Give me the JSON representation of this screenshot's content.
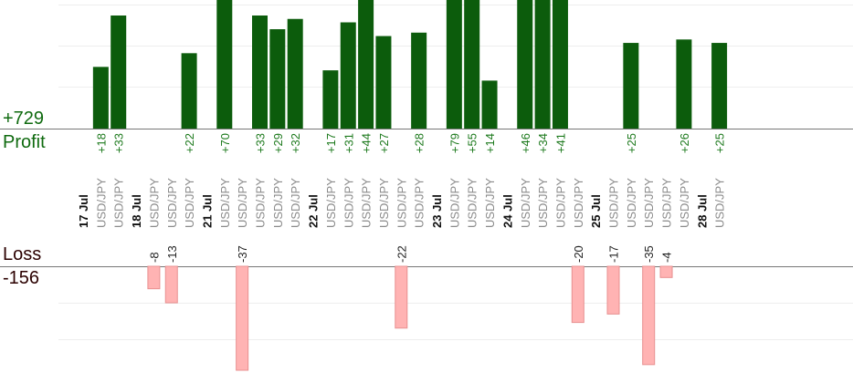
{
  "summary": {
    "profit_total": "+729",
    "profit_label": "Profit",
    "loss_label": "Loss",
    "loss_total": "-156"
  },
  "chart_data": {
    "type": "bar",
    "colors": {
      "profit": "#0c5c0c",
      "loss": "#ffb3b3",
      "label_profit": "#1e7a1e",
      "label_loss": "#222222",
      "pair": "#8a8a8a",
      "date": "#111111"
    },
    "profit_scale_max": 33,
    "loss_scale_max": 37,
    "columns": [
      {
        "date": "17 Jul"
      },
      {
        "pair": "USD/JPY",
        "value": 18
      },
      {
        "pair": "USD/JPY",
        "value": 33
      },
      {
        "date": "18 Jul"
      },
      {
        "pair": "USD/JPY",
        "value": -8
      },
      {
        "pair": "USD/JPY",
        "value": -13
      },
      {
        "pair": "USD/JPY",
        "value": 22
      },
      {
        "date": "21 Jul"
      },
      {
        "pair": "USD/JPY",
        "value": 70
      },
      {
        "pair": "USD/JPY",
        "value": -37
      },
      {
        "pair": "USD/JPY",
        "value": 33
      },
      {
        "pair": "USD/JPY",
        "value": 29
      },
      {
        "pair": "USD/JPY",
        "value": 32
      },
      {
        "date": "22 Jul"
      },
      {
        "pair": "USD/JPY",
        "value": 17
      },
      {
        "pair": "USD/JPY",
        "value": 31
      },
      {
        "pair": "USD/JPY",
        "value": 44
      },
      {
        "pair": "USD/JPY",
        "value": 27
      },
      {
        "pair": "USD/JPY",
        "value": -22
      },
      {
        "pair": "USD/JPY",
        "value": 28
      },
      {
        "date": "23 Jul"
      },
      {
        "pair": "USD/JPY",
        "value": 79
      },
      {
        "pair": "USD/JPY",
        "value": 55
      },
      {
        "pair": "USD/JPY",
        "value": 14
      },
      {
        "date": "24 Jul"
      },
      {
        "pair": "USD/JPY",
        "value": 46
      },
      {
        "pair": "USD/JPY",
        "value": 34
      },
      {
        "pair": "USD/JPY",
        "value": 41
      },
      {
        "pair": "USD/JPY",
        "value": -20
      },
      {
        "date": "25 Jul"
      },
      {
        "pair": "USD/JPY",
        "value": -17
      },
      {
        "pair": "USD/JPY",
        "value": 25
      },
      {
        "pair": "USD/JPY",
        "value": -35
      },
      {
        "pair": "USD/JPY",
        "value": -4
      },
      {
        "pair": "USD/JPY",
        "value": 26
      },
      {
        "date": "28 Jul"
      },
      {
        "pair": "USD/JPY",
        "value": 25
      }
    ]
  }
}
